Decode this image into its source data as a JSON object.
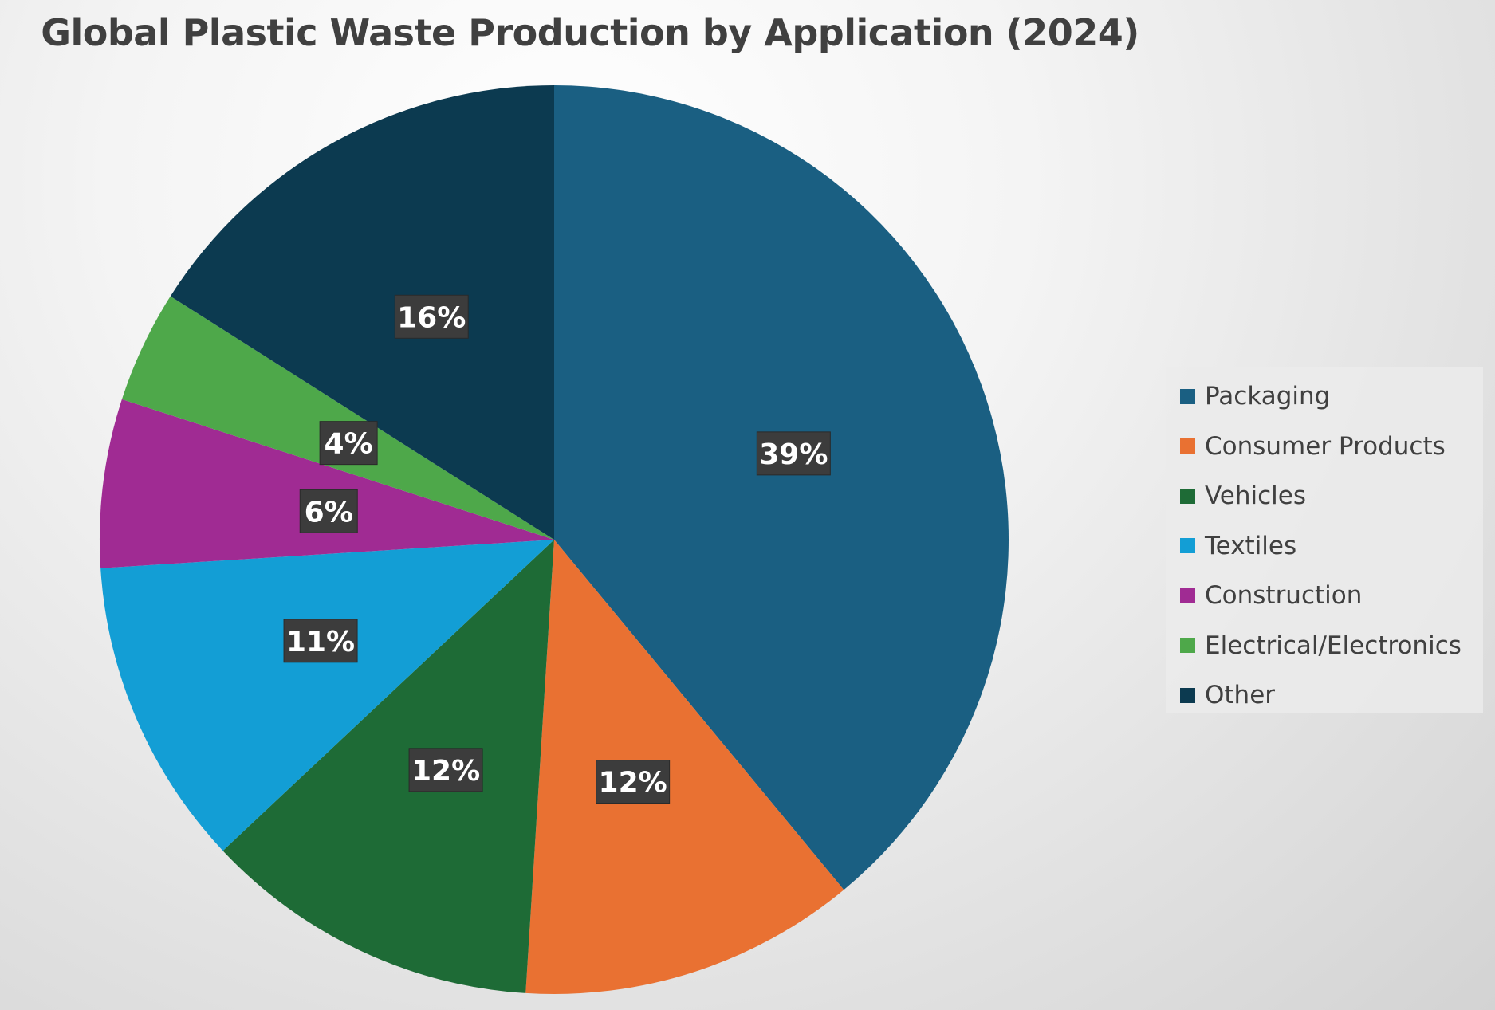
{
  "chart_data": {
    "type": "pie",
    "title": "Global Plastic Waste Production by Application (2024)",
    "legend_position": "right",
    "slices": [
      {
        "name": "Packaging",
        "value": 39,
        "label": "39%",
        "color": "#1a5f82"
      },
      {
        "name": "Consumer Products",
        "value": 12,
        "label": "12%",
        "color": "#e97132"
      },
      {
        "name": "Vehicles",
        "value": 12,
        "label": "12%",
        "color": "#1e6b36"
      },
      {
        "name": "Textiles",
        "value": 11,
        "label": "11%",
        "color": "#139ed5"
      },
      {
        "name": "Construction",
        "value": 6,
        "label": "6%",
        "color": "#a02b93"
      },
      {
        "name": "Electrical/Electronics",
        "value": 4,
        "label": "4%",
        "color": "#4ea84a"
      },
      {
        "name": "Other",
        "value": 16,
        "label": "16%",
        "color": "#0c3a50"
      }
    ]
  }
}
